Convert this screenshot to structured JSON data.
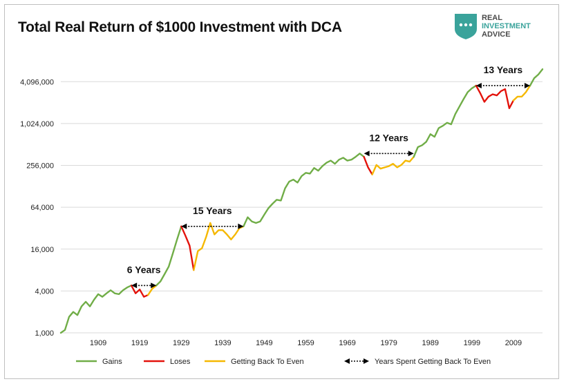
{
  "brand": {
    "line1": "REAL",
    "line2": "INVESTMENT",
    "line3": "ADVICE",
    "logo_color": "#3aa39b",
    "text_dark": "#4a4a4a",
    "text_accent": "#3aa39b"
  },
  "chart_data": {
    "type": "line",
    "title": "Total Real Return of $1000 Investment with DCA",
    "yscale": "log2",
    "ylim": [
      1000,
      8192000
    ],
    "xlim": [
      1900,
      2016
    ],
    "y_ticks": [
      1000,
      4000,
      16000,
      64000,
      256000,
      1024000,
      4096000
    ],
    "y_tick_labels": [
      "1,000",
      "4,000",
      "16,000",
      "64,000",
      "256,000",
      "1,024,000",
      "4,096,000"
    ],
    "x_ticks": [
      1909,
      1919,
      1929,
      1939,
      1949,
      1959,
      1969,
      1979,
      1989,
      1999,
      2009
    ],
    "x_tick_labels": [
      "1909",
      "1919",
      "1929",
      "1939",
      "1949",
      "1959",
      "1969",
      "1979",
      "1989",
      "1999",
      "2009"
    ],
    "colors": {
      "gains": "#70ad47",
      "loses": "#e3120b",
      "recovery": "#f5b800",
      "arrow": "#000000"
    },
    "series": [
      {
        "name": "Gains",
        "role": "gains",
        "x": [
          1900,
          1901,
          1902,
          1903,
          1904,
          1905,
          1906,
          1907,
          1908,
          1909,
          1910,
          1911,
          1912,
          1913,
          1914,
          1915,
          1916,
          1917
        ],
        "y": [
          1000,
          1100,
          1700,
          2000,
          1800,
          2400,
          2800,
          2400,
          3000,
          3600,
          3300,
          3700,
          4100,
          3700,
          3600,
          4100,
          4500,
          4800
        ]
      },
      {
        "name": "Loses",
        "role": "loses",
        "x": [
          1917,
          1918,
          1919,
          1920,
          1921
        ],
        "y": [
          4800,
          3700,
          4200,
          3300,
          3500
        ]
      },
      {
        "name": "Getting Back To Even",
        "role": "recovery",
        "x": [
          1921,
          1922,
          1923
        ],
        "y": [
          3500,
          4300,
          4800
        ]
      },
      {
        "name": "Gains",
        "role": "gains",
        "x": [
          1923,
          1924,
          1925,
          1926,
          1927,
          1928,
          1929
        ],
        "y": [
          4800,
          5500,
          7000,
          9000,
          14000,
          22000,
          34000
        ]
      },
      {
        "name": "Loses",
        "role": "loses",
        "x": [
          1929,
          1930,
          1931,
          1932
        ],
        "y": [
          34000,
          25000,
          18000,
          8000
        ]
      },
      {
        "name": "Getting Back To Even",
        "role": "recovery",
        "x": [
          1932,
          1933,
          1934,
          1935,
          1936,
          1937,
          1938,
          1939,
          1940,
          1941,
          1942,
          1943,
          1944
        ],
        "y": [
          8000,
          15000,
          16500,
          24000,
          38000,
          26000,
          30000,
          30000,
          26000,
          22000,
          26000,
          32000,
          34000
        ]
      },
      {
        "name": "Gains",
        "role": "gains",
        "x": [
          1944,
          1945,
          1946,
          1947,
          1948,
          1949,
          1950,
          1951,
          1952,
          1953,
          1954,
          1955,
          1956,
          1957,
          1958,
          1959,
          1960,
          1961,
          1962,
          1963,
          1964,
          1965,
          1966,
          1967,
          1968,
          1969,
          1970,
          1971,
          1972,
          1973
        ],
        "y": [
          34000,
          46000,
          40000,
          38000,
          40000,
          50000,
          62000,
          72000,
          82000,
          80000,
          120000,
          150000,
          160000,
          145000,
          180000,
          200000,
          195000,
          235000,
          215000,
          250000,
          280000,
          300000,
          270000,
          310000,
          330000,
          300000,
          310000,
          340000,
          380000,
          340000
        ]
      },
      {
        "name": "Loses",
        "role": "loses",
        "x": [
          1973,
          1974,
          1975
        ],
        "y": [
          340000,
          240000,
          190000
        ]
      },
      {
        "name": "Getting Back To Even",
        "role": "recovery",
        "x": [
          1975,
          1976,
          1977,
          1978,
          1979,
          1980,
          1981,
          1982,
          1983,
          1984,
          1985
        ],
        "y": [
          190000,
          260000,
          230000,
          240000,
          250000,
          270000,
          240000,
          260000,
          300000,
          290000,
          340000
        ]
      },
      {
        "name": "Gains",
        "role": "gains",
        "x": [
          1985,
          1986,
          1987,
          1988,
          1989,
          1990,
          1991,
          1992,
          1993,
          1994,
          1995,
          1996,
          1997,
          1998,
          1999,
          2000
        ],
        "y": [
          340000,
          470000,
          500000,
          560000,
          720000,
          660000,
          880000,
          950000,
          1050000,
          1000000,
          1400000,
          1800000,
          2300000,
          2900000,
          3300000,
          3600000
        ]
      },
      {
        "name": "Loses",
        "role": "loses",
        "x": [
          2000,
          2001,
          2002,
          2003,
          2004,
          2005,
          2006,
          2007,
          2008,
          2009
        ],
        "y": [
          3600000,
          2800000,
          2100000,
          2500000,
          2700000,
          2600000,
          3000000,
          3200000,
          1700000,
          2200000
        ]
      },
      {
        "name": "Getting Back To Even",
        "role": "recovery",
        "x": [
          2009,
          2010,
          2011,
          2012,
          2013
        ],
        "y": [
          2200000,
          2500000,
          2500000,
          2900000,
          3600000
        ]
      },
      {
        "name": "Gains",
        "role": "gains",
        "x": [
          2013,
          2014,
          2015,
          2016
        ],
        "y": [
          3600000,
          4600000,
          5200000,
          6200000
        ]
      }
    ],
    "annotations": [
      {
        "label": "6 Years",
        "x_start": 1917,
        "x_end": 1923,
        "y": 4800
      },
      {
        "label": "15 Years",
        "x_start": 1929,
        "x_end": 1944,
        "y": 34000
      },
      {
        "label": "12 Years",
        "x_start": 1973,
        "x_end": 1985,
        "y": 380000
      },
      {
        "label": "13 Years",
        "x_start": 2000,
        "x_end": 2013,
        "y": 3600000
      }
    ],
    "legend": [
      {
        "role": "gains",
        "label": "Gains"
      },
      {
        "role": "loses",
        "label": "Loses"
      },
      {
        "role": "recovery",
        "label": "Getting Back To Even"
      },
      {
        "role": "arrow",
        "label": "Years Spent Getting Back To Even"
      }
    ]
  }
}
